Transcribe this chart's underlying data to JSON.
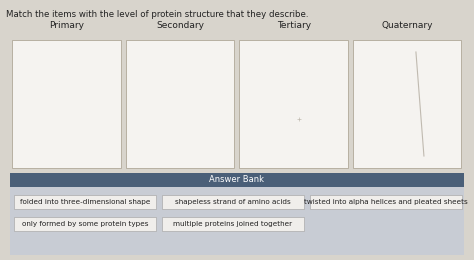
{
  "title": "Match the items with the level of protein structure that they describe.",
  "columns": [
    "Primary",
    "Secondary",
    "Tertiary",
    "Quaternary"
  ],
  "answer_bank_label": "Answer Bank",
  "answer_items_row1": [
    "folded into three-dimensional shape",
    "shapeless strand of amino acids",
    "twisted into alpha helices and pleated sheets"
  ],
  "answer_items_row2": [
    "only formed by some protein types",
    "multiple proteins joined together"
  ],
  "bg_color": "#d8d4cc",
  "box_bg": "#f5f3f0",
  "box_border": "#b0a898",
  "answer_bank_header_color": "#4a5f78",
  "answer_bank_bg": "#c8ccd4",
  "title_fontsize": 6.2,
  "col_fontsize": 6.5,
  "answer_fontsize": 5.2,
  "answer_bank_header_fontsize": 6.0,
  "arc_colors": [
    "#d4e8d0",
    "#e8d0d0",
    "#d0d8e8",
    "#d4e8d0",
    "#e8d0d0",
    "#d0d8e8"
  ],
  "secondary_arc_n": 6
}
